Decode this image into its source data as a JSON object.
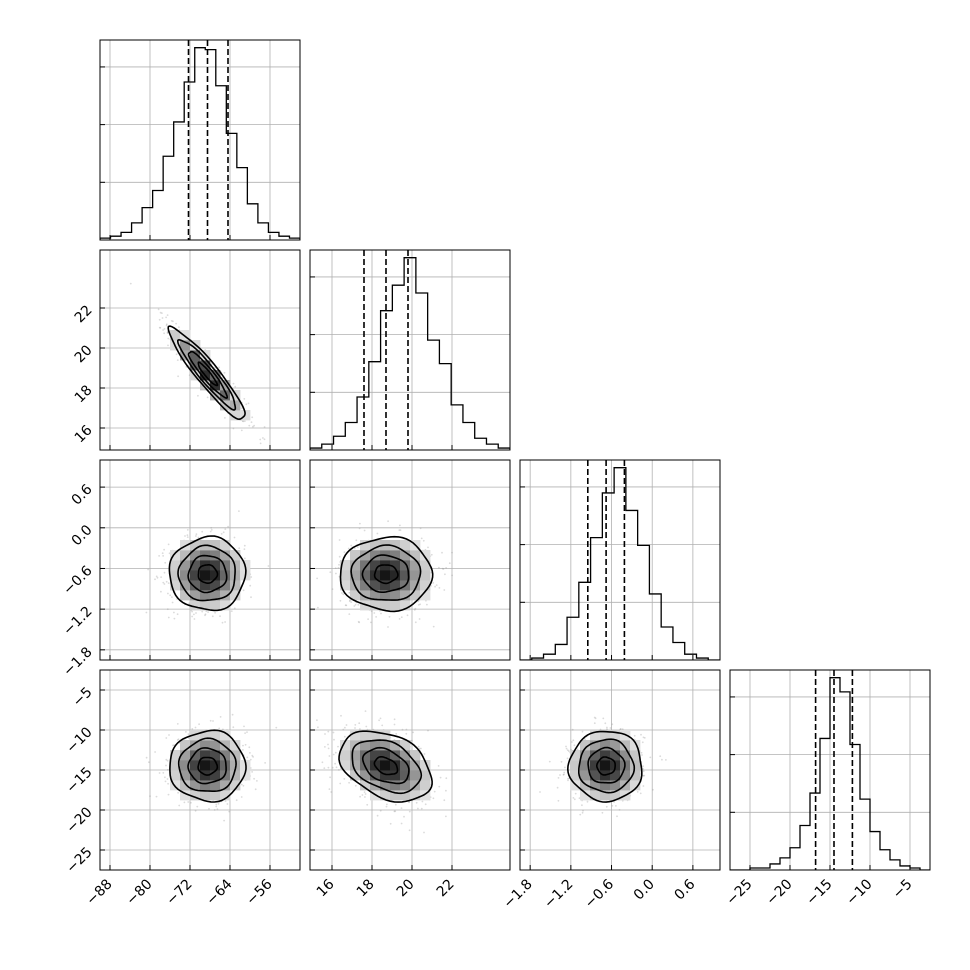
{
  "chart_data": {
    "type": "corner",
    "parameters": [
      {
        "mean": -68.5,
        "std": 3.8,
        "range": [
          -90,
          -50
        ],
        "ticks": [
          -88,
          -80,
          -72,
          -64,
          -56
        ],
        "tick_labels": [
          "−88",
          "−80",
          "−72",
          "−64",
          "−56"
        ],
        "quantiles": [
          -72.3,
          -68.5,
          -64.4
        ],
        "hist": [
          1,
          2,
          4,
          9,
          17,
          26,
          44,
          62,
          83,
          101,
          100,
          81,
          56,
          38,
          19,
          9,
          4,
          2,
          1
        ]
      },
      {
        "mean": 18.7,
        "std": 1.15,
        "range": [
          14.9,
          24.9
        ],
        "ticks": [
          16,
          18,
          20,
          22
        ],
        "tick_labels": [
          "16",
          "18",
          "20",
          "22"
        ],
        "quantiles": [
          17.6,
          18.7,
          19.8
        ],
        "hist": [
          1,
          3,
          7,
          14,
          27,
          45,
          71,
          84,
          98,
          80,
          56,
          44,
          23,
          14,
          6,
          3,
          1
        ]
      },
      {
        "mean": -0.68,
        "std": 0.27,
        "range": [
          -1.95,
          1.0
        ],
        "ticks": [
          -1.8,
          -1.2,
          -0.6,
          0.0,
          0.6
        ],
        "tick_labels": [
          "−1.8",
          "−1.2",
          "−0.6",
          "0.0",
          "0.6"
        ],
        "quantiles": [
          -0.95,
          -0.68,
          -0.41
        ],
        "hist": [
          0,
          1,
          3,
          8,
          22,
          40,
          63,
          86,
          99,
          77,
          59,
          34,
          17,
          9,
          3,
          1,
          0
        ]
      },
      {
        "mean": -14.5,
        "std": 2.2,
        "range": [
          -27.5,
          -2.5
        ],
        "ticks": [
          -25,
          -20,
          -15,
          -10,
          -5
        ],
        "tick_labels": [
          "−25",
          "−20",
          "−15",
          "−10",
          "−5"
        ],
        "quantiles": [
          -16.8,
          -14.5,
          -12.2
        ],
        "hist": [
          0,
          0,
          1,
          1,
          3,
          6,
          11,
          22,
          38,
          65,
          95,
          88,
          62,
          35,
          19,
          10,
          5,
          2,
          1,
          0
        ]
      }
    ],
    "correlations": [
      [
        1.0,
        -0.93,
        0.0,
        0.0
      ],
      [
        -0.93,
        1.0,
        0.0,
        -0.35
      ],
      [
        0.0,
        0.0,
        1.0,
        0.0
      ],
      [
        0.0,
        -0.35,
        0.0,
        1.0
      ]
    ],
    "grid": true,
    "quantile_levels": [
      0.16,
      0.5,
      0.84
    ],
    "contour_levels": [
      0.5,
      1.0,
      1.5,
      2.0
    ]
  }
}
